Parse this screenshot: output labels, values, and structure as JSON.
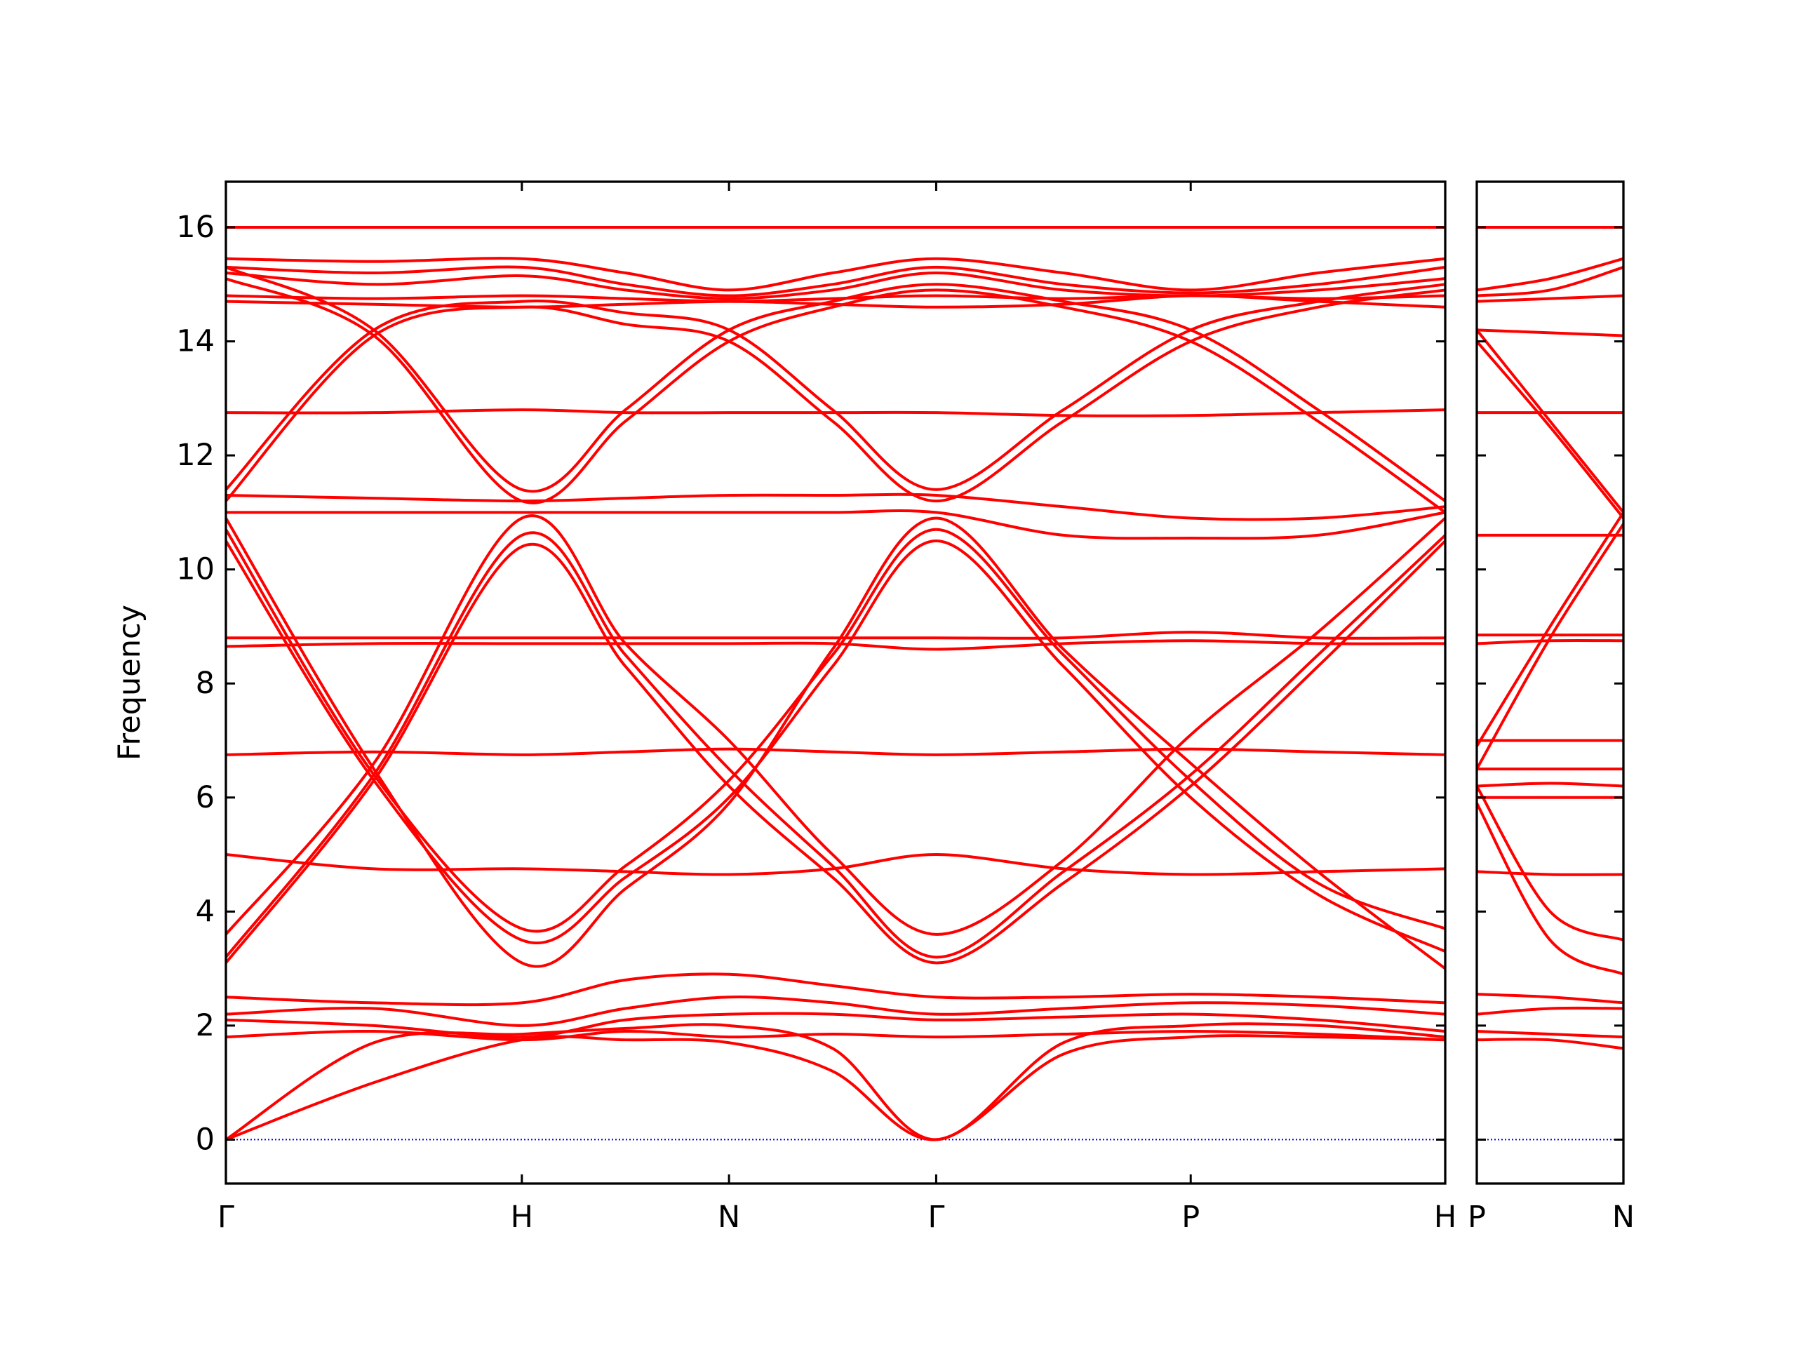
{
  "chart_data": [
    {
      "type": "line",
      "ylabel": "Frequency",
      "color": "#ff0000",
      "xlim": [
        0,
        4.12
      ],
      "ylim": [
        -0.77,
        16.8
      ],
      "xticks": [
        {
          "value": 0,
          "label": "Γ"
        },
        {
          "value": 1,
          "label": "H"
        },
        {
          "value": 1.7,
          "label": "N"
        },
        {
          "value": 2.4,
          "label": "Γ"
        },
        {
          "value": 3.26,
          "label": "P"
        },
        {
          "value": 4.12,
          "label": "H"
        }
      ],
      "yticks": [
        0,
        2,
        4,
        6,
        8,
        10,
        12,
        14,
        16
      ],
      "ytick_labels": true,
      "hline": {
        "value": 0,
        "color": "#0000cc"
      },
      "x": [
        0,
        0.5,
        1,
        1.35,
        1.7,
        2.05,
        2.4,
        2.83,
        3.26,
        3.69,
        4.12
      ],
      "series": [
        {
          "values": [
            16,
            16,
            16,
            16,
            16,
            16,
            16,
            16,
            16,
            16,
            16
          ]
        },
        {
          "values": [
            15.45,
            15.4,
            15.45,
            15.2,
            14.9,
            15.2,
            15.45,
            15.2,
            14.9,
            15.2,
            15.45
          ]
        },
        {
          "values": [
            15.3,
            15.2,
            15.3,
            15.0,
            14.8,
            15.0,
            15.3,
            15.0,
            14.85,
            15.0,
            15.3
          ]
        },
        {
          "values": [
            15.2,
            15.0,
            15.15,
            14.9,
            14.75,
            14.9,
            15.2,
            14.9,
            14.8,
            14.9,
            15.1
          ]
        },
        {
          "values": [
            14.8,
            14.75,
            14.8,
            14.75,
            14.7,
            14.75,
            14.8,
            14.75,
            14.8,
            14.75,
            14.8
          ]
        },
        {
          "values": [
            14.7,
            14.65,
            14.6,
            14.65,
            14.7,
            14.65,
            14.6,
            14.65,
            14.8,
            14.7,
            14.6
          ]
        },
        {
          "values": [
            11.4,
            14.2,
            14.7,
            14.5,
            14.2,
            12.8,
            11.4,
            12.8,
            14.2,
            14.7,
            15.0
          ]
        },
        {
          "values": [
            15.3,
            14.2,
            11.4,
            12.8,
            14.2,
            14.7,
            15.0,
            14.7,
            14.2,
            12.8,
            11.2
          ]
        },
        {
          "values": [
            11.2,
            14.1,
            14.6,
            14.3,
            14.0,
            12.6,
            11.2,
            12.6,
            14.0,
            14.6,
            14.9
          ]
        },
        {
          "values": [
            15.1,
            14.1,
            11.2,
            12.6,
            14.0,
            14.6,
            14.9,
            14.6,
            14.0,
            12.6,
            11.0
          ]
        },
        {
          "values": [
            12.75,
            12.75,
            12.8,
            12.75,
            12.75,
            12.75,
            12.75,
            12.7,
            12.7,
            12.75,
            12.8
          ]
        },
        {
          "values": [
            11.0,
            11.0,
            11.0,
            11.0,
            11.0,
            11.0,
            11.0,
            10.6,
            10.55,
            10.6,
            11.0
          ]
        },
        {
          "values": [
            11.3,
            11.25,
            11.2,
            11.25,
            11.3,
            11.3,
            11.3,
            11.1,
            10.9,
            10.9,
            11.1
          ]
        },
        {
          "values": [
            10.7,
            6.4,
            3.7,
            4.8,
            6.3,
            8.5,
            10.7,
            8.5,
            6.3,
            4.5,
            3.7
          ]
        },
        {
          "values": [
            3.2,
            6.4,
            10.6,
            8.5,
            6.5,
            4.8,
            3.2,
            4.7,
            6.4,
            8.5,
            10.6
          ]
        },
        {
          "values": [
            10.5,
            6.3,
            3.5,
            4.6,
            6.0,
            8.3,
            10.5,
            8.3,
            6.0,
            4.3,
            3.3
          ]
        },
        {
          "values": [
            3.1,
            6.3,
            10.4,
            8.3,
            6.2,
            4.6,
            3.1,
            4.5,
            6.2,
            8.3,
            10.5
          ]
        },
        {
          "values": [
            10.9,
            6.5,
            3.1,
            4.4,
            5.9,
            8.6,
            10.9,
            8.6,
            6.6,
            4.7,
            3.0
          ]
        },
        {
          "values": [
            3.6,
            6.6,
            10.9,
            8.7,
            7.0,
            5.0,
            3.6,
            4.9,
            7.1,
            8.9,
            10.9
          ]
        },
        {
          "values": [
            8.8,
            8.8,
            8.8,
            8.8,
            8.8,
            8.8,
            8.8,
            8.8,
            8.9,
            8.8,
            8.8
          ]
        },
        {
          "values": [
            8.65,
            8.7,
            8.7,
            8.7,
            8.7,
            8.7,
            8.6,
            8.7,
            8.75,
            8.7,
            8.7
          ]
        },
        {
          "values": [
            6.75,
            6.8,
            6.75,
            6.8,
            6.85,
            6.8,
            6.75,
            6.8,
            6.85,
            6.8,
            6.75
          ]
        },
        {
          "values": [
            5.0,
            4.75,
            4.75,
            4.7,
            4.65,
            4.75,
            5.0,
            4.75,
            4.65,
            4.7,
            4.75
          ]
        },
        {
          "values": [
            2.5,
            2.4,
            2.4,
            2.8,
            2.9,
            2.7,
            2.5,
            2.5,
            2.55,
            2.5,
            2.4
          ]
        },
        {
          "values": [
            2.2,
            2.3,
            2.0,
            2.3,
            2.5,
            2.4,
            2.2,
            2.3,
            2.4,
            2.35,
            2.2
          ]
        },
        {
          "values": [
            2.1,
            2.0,
            1.8,
            2.1,
            2.2,
            2.2,
            2.1,
            2.15,
            2.2,
            2.1,
            1.9
          ]
        },
        {
          "values": [
            1.8,
            1.9,
            1.75,
            1.9,
            1.8,
            1.85,
            1.8,
            1.85,
            1.9,
            1.85,
            1.75
          ]
        },
        {
          "values": [
            0,
            1.0,
            1.75,
            1.75,
            1.7,
            1.2,
            0,
            1.5,
            1.8,
            1.8,
            1.75
          ]
        },
        {
          "values": [
            0,
            1.7,
            1.85,
            1.95,
            2.0,
            1.6,
            0,
            1.7,
            2.0,
            2.0,
            1.8
          ]
        }
      ]
    },
    {
      "type": "line",
      "color": "#ff0000",
      "xlim": [
        0,
        0.5
      ],
      "ylim": [
        -0.77,
        16.8
      ],
      "xticks": [
        {
          "value": 0,
          "label": "P"
        },
        {
          "value": 0.5,
          "label": "N"
        }
      ],
      "yticks": [
        0,
        2,
        4,
        6,
        8,
        10,
        12,
        14,
        16
      ],
      "ytick_labels": false,
      "hline": {
        "value": 0,
        "color": "#0000cc"
      },
      "x": [
        0,
        0.25,
        0.5
      ],
      "series": [
        {
          "values": [
            16,
            16,
            16
          ]
        },
        {
          "values": [
            14.9,
            15.1,
            15.45
          ]
        },
        {
          "values": [
            14.8,
            14.9,
            15.3
          ]
        },
        {
          "values": [
            14.7,
            14.75,
            14.8
          ]
        },
        {
          "values": [
            14.2,
            14.15,
            14.1
          ]
        },
        {
          "values": [
            14.2,
            12.6,
            11.0
          ]
        },
        {
          "values": [
            14.0,
            12.5,
            10.9
          ]
        },
        {
          "values": [
            12.75,
            12.75,
            12.75
          ]
        },
        {
          "values": [
            10.6,
            10.6,
            10.6
          ]
        },
        {
          "values": [
            6.9,
            9.0,
            11.0
          ]
        },
        {
          "values": [
            6.5,
            8.8,
            10.8
          ]
        },
        {
          "values": [
            8.85,
            8.85,
            8.85
          ]
        },
        {
          "values": [
            8.7,
            8.75,
            8.75
          ]
        },
        {
          "values": [
            7.0,
            7.0,
            7.0
          ]
        },
        {
          "values": [
            6.5,
            6.5,
            6.5
          ]
        },
        {
          "values": [
            6.2,
            6.25,
            6.2
          ]
        },
        {
          "values": [
            6.0,
            6.0,
            6.0
          ]
        },
        {
          "values": [
            6.2,
            4.0,
            3.5
          ]
        },
        {
          "values": [
            5.9,
            3.5,
            2.9
          ]
        },
        {
          "values": [
            4.7,
            4.65,
            4.65
          ]
        },
        {
          "values": [
            2.55,
            2.5,
            2.4
          ]
        },
        {
          "values": [
            2.2,
            2.3,
            2.3
          ]
        },
        {
          "values": [
            1.9,
            1.85,
            1.8
          ]
        },
        {
          "values": [
            1.75,
            1.75,
            1.6
          ]
        }
      ]
    }
  ]
}
